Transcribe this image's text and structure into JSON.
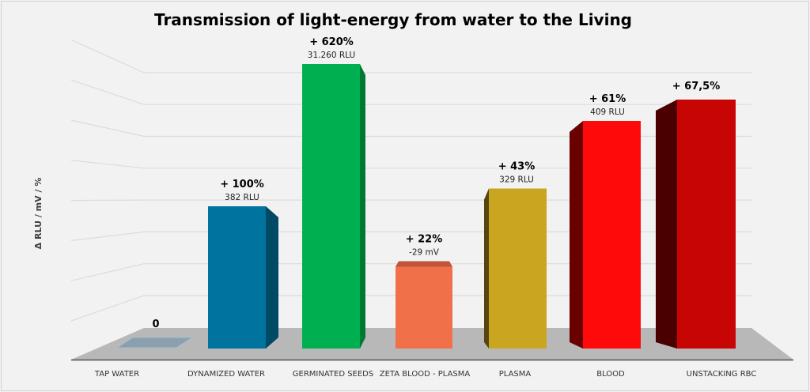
{
  "chart_data": {
    "type": "bar",
    "style": "3d",
    "title": "Transmission of light-energy from water to the Living",
    "ylabel": "Δ RLU / mV / %",
    "xlabel": "",
    "grid": true,
    "ylim": [
      0,
      8
    ],
    "categories": [
      "TAP WATER",
      "DYNAMIZED WATER",
      "GERMINATED SEEDS",
      "ZETA BLOOD - PLASMA",
      "PLASMA",
      "BLOOD",
      "UNSTACKING RBC"
    ],
    "values": [
      0,
      4.0,
      8.0,
      2.3,
      4.5,
      6.4,
      7.0
    ],
    "percent_labels": [
      "0",
      "+ 100%",
      "+ 620%",
      "+ 22%",
      "+ 43%",
      "+ 61%",
      "+ 67,5%"
    ],
    "value_labels": [
      "",
      "382 RLU",
      "31.260 RLU",
      "-29 mV",
      "329 RLU",
      "409 RLU",
      ""
    ],
    "colors": [
      "#8aa0ae",
      "#00739e",
      "#00b050",
      "#f0704a",
      "#c9a520",
      "#ff0a0a",
      "#c80505"
    ],
    "side_colors": [
      "#7d93a2",
      "#004a66",
      "#007a33",
      "#c0553a",
      "#574510",
      "#6b0000",
      "#4a0000"
    ]
  }
}
